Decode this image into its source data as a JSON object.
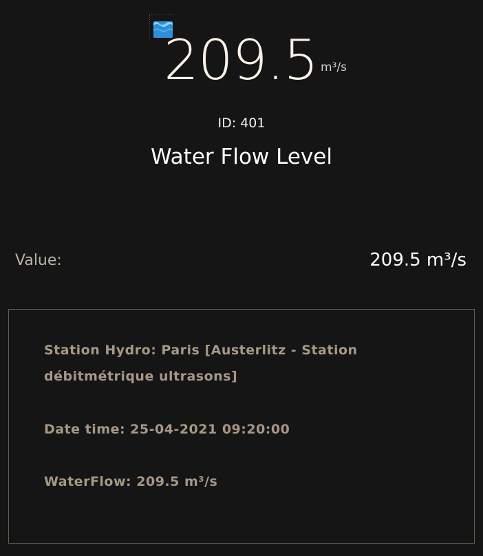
{
  "widget": {
    "icon": "water-icon",
    "big_value": "209.5",
    "big_unit": "m³/s",
    "id_text": "ID: 401",
    "title": "Water Flow Level",
    "value_label": "Value:",
    "value_text": "209.5 m³/s"
  },
  "info": {
    "station": "Station Hydro: Paris [Austerlitz - Station débitmétrique ultrasons]",
    "datetime": "Date time: 25-04-2021 09:20:00",
    "waterflow": "WaterFlow: 209.5 m³/s"
  },
  "colors": {
    "background": "#151515",
    "border": "#6c5c4c",
    "info_text": "#a89785",
    "icon_water": "#2f8fd8"
  }
}
